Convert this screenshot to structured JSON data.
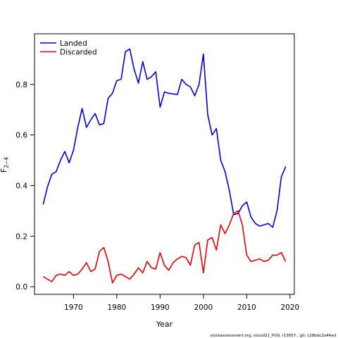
{
  "chart_data": {
    "type": "line",
    "xlabel": "Year",
    "ylabel_main": "F",
    "ylabel_sub": "2−4",
    "xlim": [
      1961,
      2021
    ],
    "ylim": [
      -0.03,
      1.0
    ],
    "xticks": [
      1970,
      1980,
      1990,
      2000,
      2010,
      2020
    ],
    "yticks": [
      0.0,
      0.2,
      0.4,
      0.6,
      0.8
    ],
    "ytick_labels": [
      "0.0",
      "0.2",
      "0.4",
      "0.6",
      "0.8"
    ],
    "legend_position": "top-left",
    "series": [
      {
        "name": "Landed",
        "color": "#0000dd",
        "x": [
          1963,
          1964,
          1965,
          1966,
          1967,
          1968,
          1969,
          1970,
          1971,
          1972,
          1973,
          1974,
          1975,
          1976,
          1977,
          1978,
          1979,
          1980,
          1981,
          1982,
          1983,
          1984,
          1985,
          1986,
          1987,
          1988,
          1989,
          1990,
          1991,
          1992,
          1993,
          1994,
          1995,
          1996,
          1997,
          1998,
          1999,
          2000,
          2001,
          2002,
          2003,
          2004,
          2005,
          2006,
          2007,
          2008,
          2009,
          2010,
          2011,
          2012,
          2013,
          2014,
          2015,
          2016,
          2017,
          2018,
          2019
        ],
        "values": [
          0.325,
          0.395,
          0.445,
          0.455,
          0.5,
          0.535,
          0.49,
          0.54,
          0.63,
          0.705,
          0.63,
          0.66,
          0.685,
          0.64,
          0.645,
          0.745,
          0.765,
          0.815,
          0.82,
          0.93,
          0.94,
          0.86,
          0.805,
          0.89,
          0.82,
          0.83,
          0.85,
          0.71,
          0.77,
          0.765,
          0.762,
          0.76,
          0.82,
          0.8,
          0.79,
          0.755,
          0.8,
          0.92,
          0.68,
          0.6,
          0.625,
          0.5,
          0.455,
          0.38,
          0.285,
          0.29,
          0.32,
          0.335,
          0.275,
          0.25,
          0.24,
          0.245,
          0.25,
          0.235,
          0.3,
          0.435,
          0.475
        ]
      },
      {
        "name": "Discarded",
        "color": "#ee0000",
        "x": [
          1963,
          1964,
          1965,
          1966,
          1967,
          1968,
          1969,
          1970,
          1971,
          1972,
          1973,
          1974,
          1975,
          1976,
          1977,
          1978,
          1979,
          1980,
          1981,
          1982,
          1983,
          1984,
          1985,
          1986,
          1987,
          1988,
          1989,
          1990,
          1991,
          1992,
          1993,
          1994,
          1995,
          1996,
          1997,
          1998,
          1999,
          2000,
          2001,
          2002,
          2003,
          2004,
          2005,
          2006,
          2007,
          2008,
          2009,
          2010,
          2011,
          2012,
          2013,
          2014,
          2015,
          2016,
          2017,
          2018,
          2019
        ],
        "values": [
          0.04,
          0.03,
          0.02,
          0.045,
          0.05,
          0.045,
          0.06,
          0.045,
          0.05,
          0.07,
          0.095,
          0.06,
          0.07,
          0.14,
          0.155,
          0.1,
          0.015,
          0.045,
          0.05,
          0.04,
          0.03,
          0.05,
          0.075,
          0.055,
          0.1,
          0.075,
          0.07,
          0.135,
          0.085,
          0.065,
          0.095,
          0.11,
          0.12,
          0.115,
          0.085,
          0.165,
          0.175,
          0.055,
          0.185,
          0.195,
          0.145,
          0.245,
          0.21,
          0.245,
          0.29,
          0.3,
          0.245,
          0.125,
          0.1,
          0.105,
          0.11,
          0.1,
          0.105,
          0.125,
          0.125,
          0.135,
          0.1
        ]
      }
    ]
  },
  "footer": {
    "note": "stockassessment.org, nscod21_PG9, r13857 , git: c28bdc2a44ad"
  }
}
